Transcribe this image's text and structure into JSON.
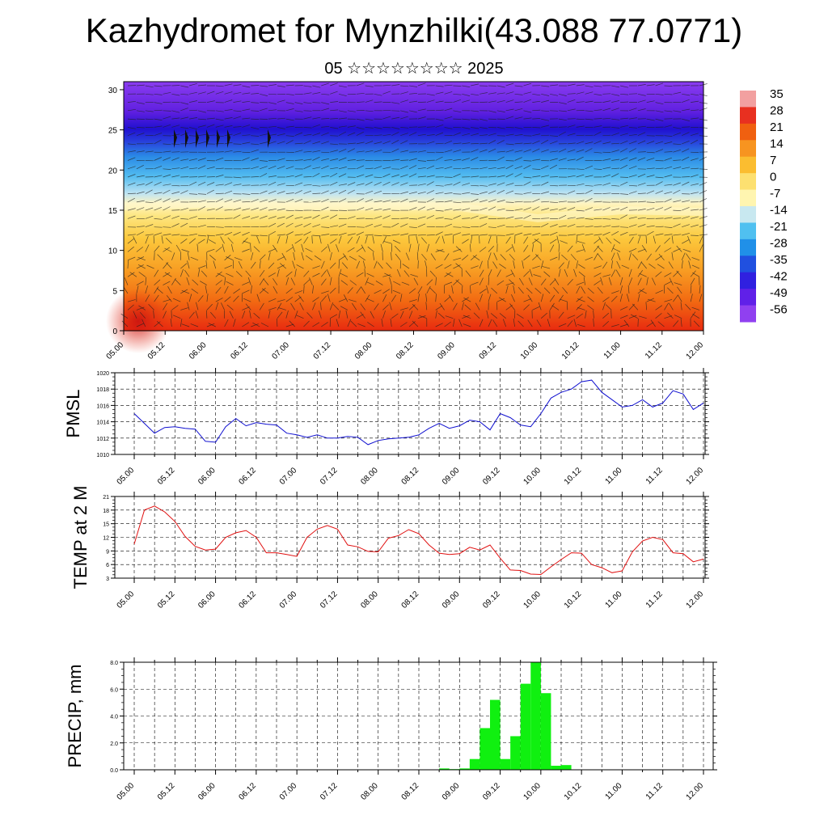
{
  "title": "Kazhydromet for Mynzhilki(43.088 77.0771)",
  "subtitle": "05 ☆☆☆☆☆☆☆☆ 2025",
  "chart_data": [
    {
      "type": "heatmap",
      "name": "temperature-cross-section",
      "x_ticks": [
        "05.00",
        "05.12",
        "06.00",
        "06.12",
        "07.00",
        "07.12",
        "08.00",
        "08.12",
        "09.00",
        "09.12",
        "10.00",
        "10.12",
        "11.00",
        "11.12",
        "12.00"
      ],
      "y_ticks": [
        "0",
        "5",
        "10",
        "15",
        "20",
        "25",
        "30"
      ],
      "ylim": [
        0,
        31
      ],
      "colorbar_labels": [
        "35",
        "28",
        "21",
        "14",
        "7",
        "0",
        "-7",
        "-14",
        "-21",
        "-28",
        "-35",
        "-42",
        "-49",
        "-56"
      ],
      "colorbar_colors": [
        "#f2a0a0",
        "#e83020",
        "#f06010",
        "#f79420",
        "#fbbd30",
        "#fde070",
        "#fff5b0",
        "#c8e8f0",
        "#50c0f0",
        "#2090e8",
        "#2050e0",
        "#3020e0",
        "#6020e8",
        "#9040f0"
      ],
      "freezing_level_by_day": [
        15.5,
        15.8,
        15.5,
        15.5,
        15.5,
        14.0,
        15.0,
        14.8
      ],
      "wind_barbs": true
    },
    {
      "type": "line",
      "name": "pmsl",
      "ylabel": "PMSL",
      "ylim": [
        1010,
        1020
      ],
      "y_ticks": [
        "1010",
        "1012",
        "1014",
        "1016",
        "1018",
        "1020"
      ],
      "x_ticks": [
        "05.00",
        "05.12",
        "06.00",
        "06.12",
        "07.00",
        "07.12",
        "08.00",
        "08.12",
        "09.00",
        "09.12",
        "10.00",
        "10.12",
        "11.00",
        "11.12",
        "12.00"
      ],
      "color": "#1010d0",
      "step_hours": 3,
      "values": [
        1015.0,
        1013.8,
        1012.6,
        1013.3,
        1013.4,
        1013.2,
        1013.1,
        1011.6,
        1011.5,
        1013.4,
        1014.4,
        1013.5,
        1013.9,
        1013.7,
        1013.6,
        1012.6,
        1012.4,
        1012.1,
        1012.4,
        1012.0,
        1012.0,
        1012.2,
        1012.1,
        1011.2,
        1011.7,
        1011.9,
        1012.0,
        1012.1,
        1012.4,
        1013.2,
        1013.8,
        1013.2,
        1013.5,
        1014.2,
        1014.0,
        1013.0,
        1015.0,
        1014.5,
        1013.6,
        1013.4,
        1015.0,
        1016.9,
        1017.6,
        1018.0,
        1018.9,
        1019.1,
        1017.6,
        1016.7,
        1015.8,
        1016.0,
        1016.7,
        1015.8,
        1016.3,
        1017.8,
        1017.4,
        1015.5,
        1016.3
      ]
    },
    {
      "type": "line",
      "name": "temp-2m",
      "ylabel": "TEMP at 2 M",
      "ylim": [
        3,
        21
      ],
      "y_ticks": [
        "3",
        "6",
        "9",
        "12",
        "15",
        "18",
        "21"
      ],
      "x_ticks": [
        "05.00",
        "05.12",
        "06.00",
        "06.12",
        "07.00",
        "07.12",
        "08.00",
        "08.12",
        "09.00",
        "09.12",
        "10.00",
        "10.12",
        "11.00",
        "11.12",
        "12.00"
      ],
      "color": "#e01010",
      "step_hours": 3,
      "values": [
        10.5,
        18.0,
        18.9,
        17.6,
        15.5,
        12.2,
        10.0,
        9.2,
        9.4,
        12.0,
        13.0,
        13.5,
        12.0,
        8.6,
        8.6,
        8.2,
        7.8,
        12.0,
        13.8,
        14.6,
        13.8,
        10.3,
        9.9,
        8.9,
        8.8,
        11.8,
        12.4,
        13.7,
        12.8,
        10.3,
        8.5,
        8.2,
        8.4,
        9.8,
        9.2,
        10.3,
        7.4,
        4.8,
        4.7,
        3.9,
        3.8,
        5.5,
        7.1,
        8.6,
        8.5,
        6.0,
        5.3,
        4.2,
        4.6,
        8.8,
        11.2,
        12.0,
        11.5,
        8.6,
        8.4,
        6.6,
        7.2
      ]
    },
    {
      "type": "bar",
      "name": "precip",
      "ylabel": "PRECIP, mm",
      "ylim": [
        0,
        8
      ],
      "y_ticks": [
        "0.0",
        "2.0",
        "4.0",
        "6.0",
        "8.0"
      ],
      "x_ticks": [
        "05.00",
        "05.12",
        "06.00",
        "06.12",
        "07.00",
        "07.12",
        "08.00",
        "08.12",
        "09.00",
        "09.12",
        "10.00",
        "10.12",
        "11.00",
        "11.12",
        "12.00"
      ],
      "color": "#10f010",
      "step_hours": 3,
      "values": [
        0,
        0,
        0,
        0,
        0,
        0,
        0,
        0,
        0,
        0,
        0,
        0,
        0,
        0,
        0,
        0,
        0,
        0,
        0,
        0,
        0,
        0,
        0,
        0,
        0,
        0,
        0,
        0,
        0,
        0,
        0.1,
        0.05,
        0.1,
        0.8,
        3.1,
        5.2,
        0.8,
        2.5,
        6.4,
        8.0,
        5.7,
        0.3,
        0.35,
        0,
        0,
        0,
        0,
        0,
        0,
        0,
        0,
        0,
        0,
        0,
        0,
        0
      ]
    }
  ]
}
